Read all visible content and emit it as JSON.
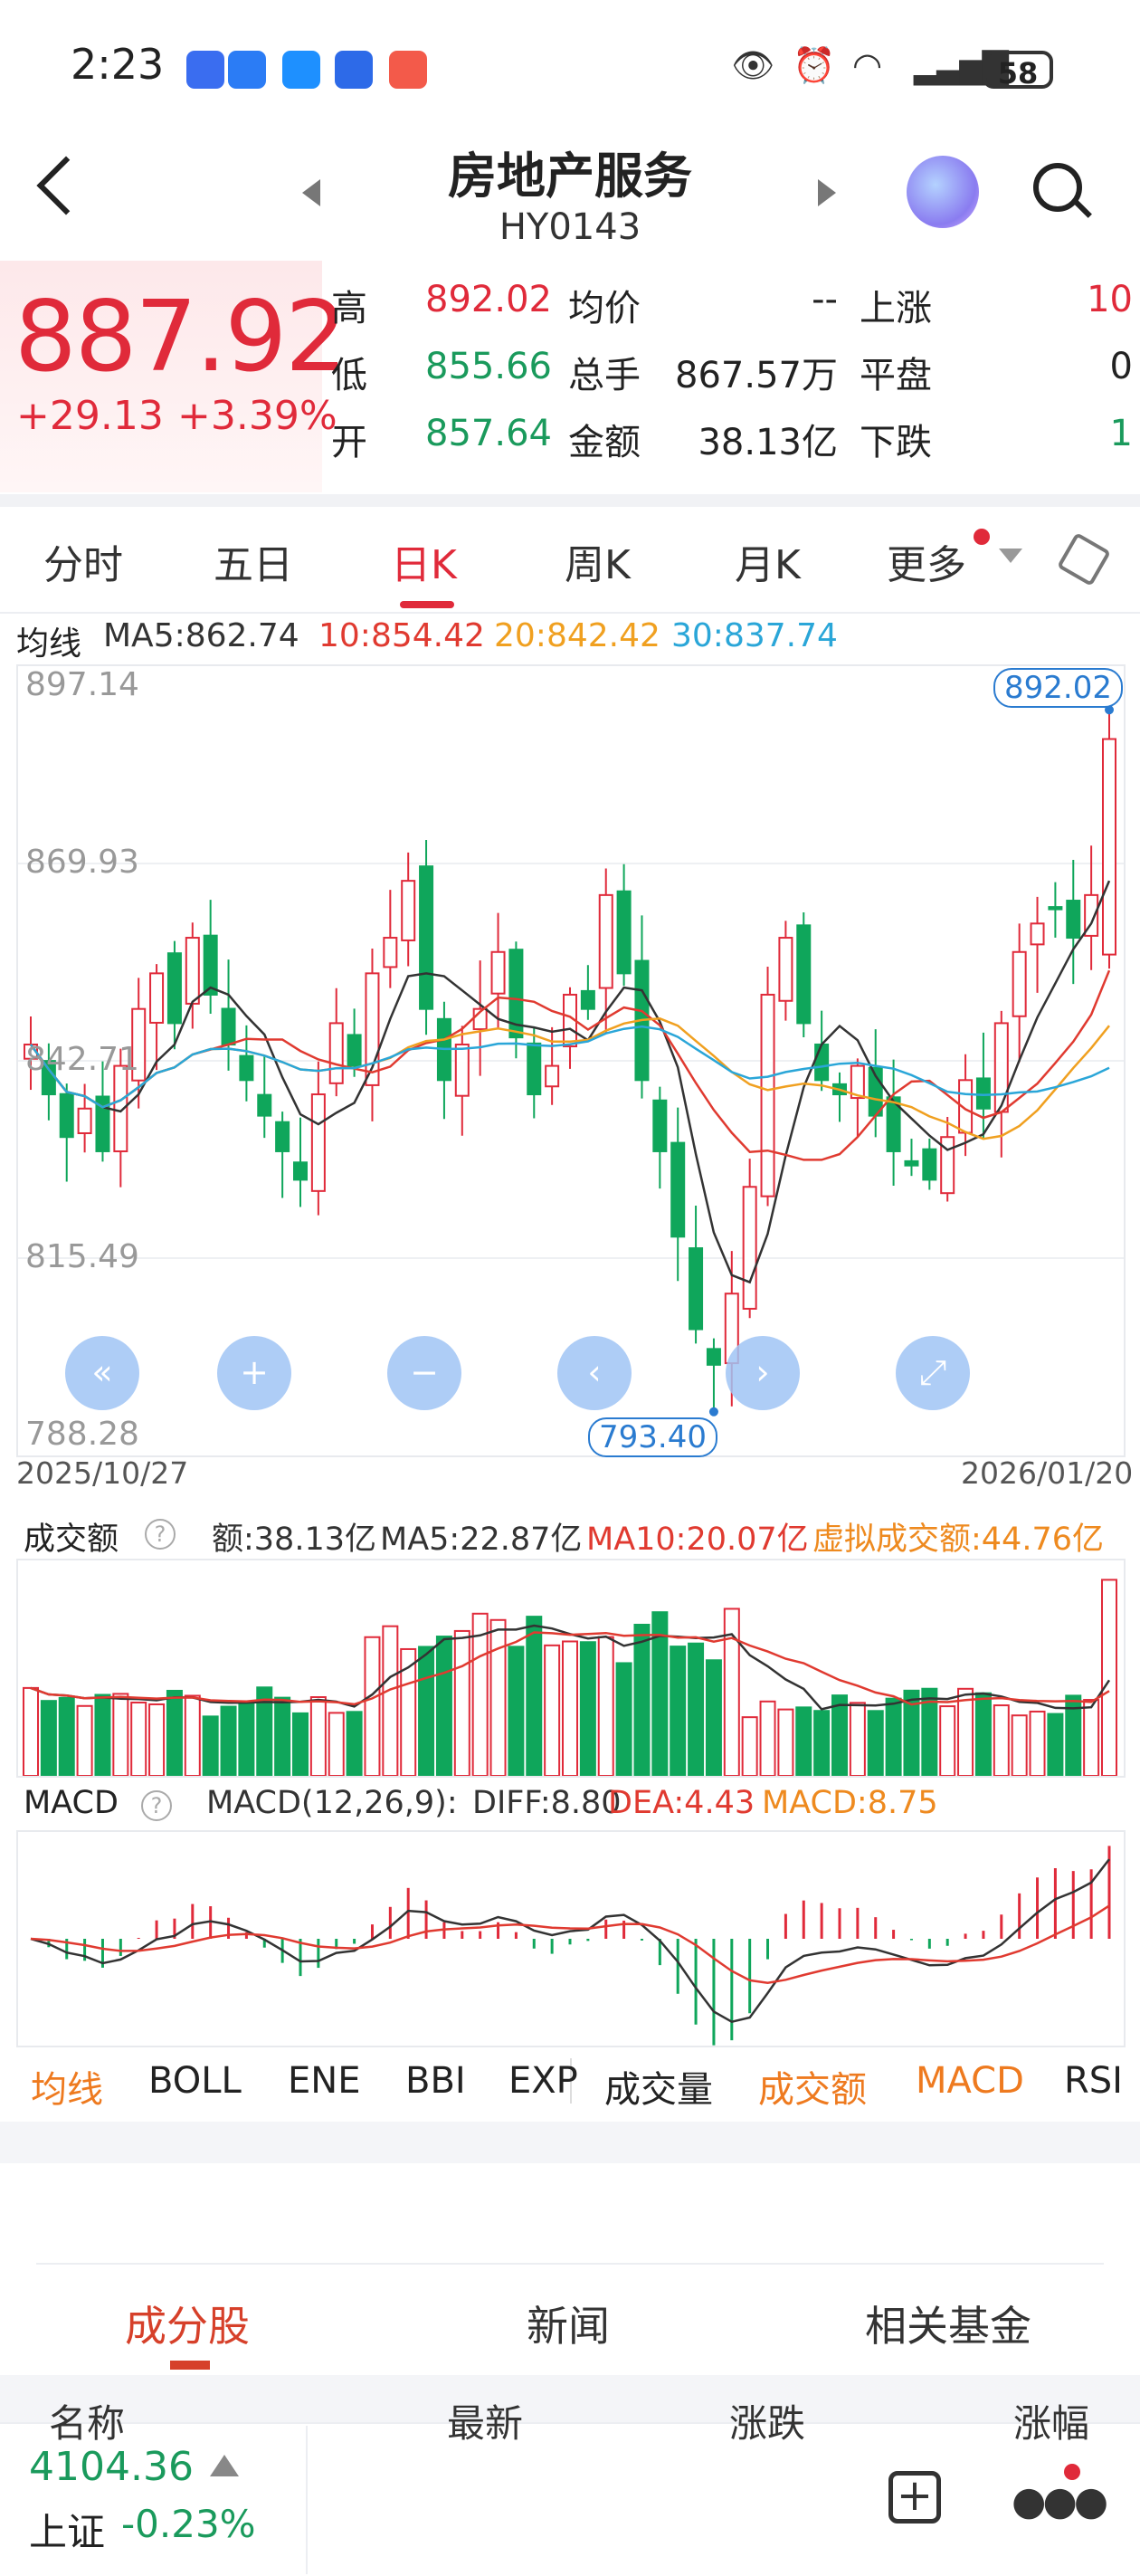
{
  "status": {
    "time": "2:23",
    "battery": "58"
  },
  "header": {
    "title": "房地产服务",
    "code": "HY0143"
  },
  "quote": {
    "price": "887.92",
    "change": "+29.13",
    "change_pct": "+3.39%",
    "rows": [
      {
        "l1": "高",
        "v1": "892.02",
        "c1": "red",
        "l2": "均价",
        "v2": "--",
        "l3": "上涨",
        "v3": "10",
        "c3": "red"
      },
      {
        "l1": "低",
        "v1": "855.66",
        "c1": "green",
        "l2": "总手",
        "v2": "867.57万",
        "l3": "平盘",
        "v3": "0",
        "c3": "dark"
      },
      {
        "l1": "开",
        "v1": "857.64",
        "c1": "green",
        "l2": "金额",
        "v2": "38.13亿",
        "l3": "下跌",
        "v3": "1",
        "c3": "green"
      }
    ]
  },
  "period_tabs": [
    "分时",
    "五日",
    "日K",
    "周K",
    "月K",
    "更多"
  ],
  "active_period": "日K",
  "ma_legend": {
    "label": "均线",
    "ma5": "MA5:862.74",
    "ma10": "10:854.42",
    "ma20": "20:842.42",
    "ma30": "30:837.74"
  },
  "colors": {
    "up": "#e02a3a",
    "down": "#0fa65b",
    "ma5": "#333333",
    "ma10": "#e03a30",
    "ma20": "#f0a020",
    "ma30": "#2aa6d8",
    "accent": "#e02a3a"
  },
  "kline": {
    "y_ticks": [
      "897.14",
      "869.93",
      "842.71",
      "815.49",
      "788.28"
    ],
    "high_label": "892.02",
    "low_label": "793.40",
    "start_date": "2025/10/27",
    "end_date": "2026/01/20"
  },
  "volume": {
    "title": "成交额",
    "amount": "额:38.13亿",
    "ma5": "MA5:22.87亿",
    "ma10": "MA10:20.07亿",
    "virtual": "虚拟成交额:44.76亿"
  },
  "macd": {
    "title": "MACD",
    "params": "MACD(12,26,9):",
    "diff": "DIFF:8.80",
    "dea": "DEA:4.43",
    "macd": "MACD:8.75"
  },
  "indicator_tabs": [
    "均线",
    "BOLL",
    "ENE",
    "BBI",
    "EXP",
    "成交量",
    "成交额",
    "MACD",
    "RSI"
  ],
  "section_tabs": [
    "成分股",
    "新闻",
    "相关基金"
  ],
  "table_headers": [
    "名称",
    "最新",
    "涨跌",
    "涨幅"
  ],
  "index_bar": {
    "value": "4104.36",
    "name": "上证",
    "change_pct": "-0.23%"
  },
  "chart_data": {
    "type": "candlestick",
    "x_range": [
      "2025/10/27",
      "2026/01/20"
    ],
    "ylim": [
      788.28,
      897.14
    ],
    "last": {
      "open": 857.64,
      "high": 892.02,
      "low": 855.66,
      "close": 887.92
    },
    "period_high": 892.02,
    "period_low": 793.4
  }
}
